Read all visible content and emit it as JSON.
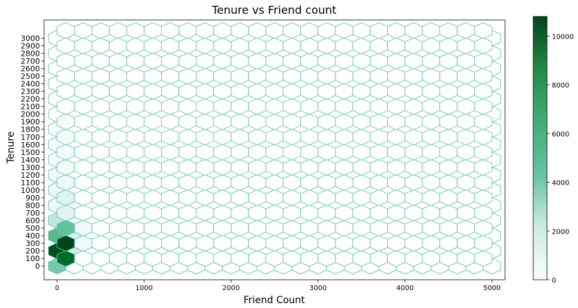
{
  "chart_data": {
    "type": "hexbin",
    "title": "Tenure vs Friend count",
    "xlabel": "Friend Count",
    "ylabel": "Tenure",
    "xlim": [
      -150,
      5150
    ],
    "ylim": [
      -180,
      3240
    ],
    "x_ticks": [
      0,
      1000,
      2000,
      3000,
      4000,
      5000
    ],
    "y_ticks": [
      0,
      100,
      200,
      300,
      400,
      500,
      600,
      700,
      800,
      900,
      1000,
      1100,
      1200,
      1300,
      1400,
      1500,
      1600,
      1700,
      1800,
      1900,
      2000,
      2100,
      2200,
      2300,
      2400,
      2500,
      2600,
      2700,
      2800,
      2900,
      3000
    ],
    "colorbar": {
      "min": 0,
      "max": 10800,
      "ticks": [
        0,
        2000,
        4000,
        6000,
        8000,
        10000
      ],
      "colormap": "BuGn"
    },
    "hex_grid": {
      "x_start": 0,
      "x_step": 200,
      "cols": 26,
      "y_start": 0,
      "y_step": 200,
      "rows": 16,
      "offset_x_start": 100,
      "offset_y_start": 100,
      "offset_cols": 25,
      "offset_rows": 16
    },
    "counts": [
      {
        "x": 0,
        "y": 0,
        "count": 5000
      },
      {
        "x": 0,
        "y": 200,
        "count": 10500
      },
      {
        "x": 100,
        "y": 100,
        "count": 9500
      },
      {
        "x": 100,
        "y": 300,
        "count": 10800
      },
      {
        "x": 200,
        "y": 200,
        "count": 2500
      },
      {
        "x": 0,
        "y": 400,
        "count": 6000
      },
      {
        "x": 100,
        "y": 500,
        "count": 5500
      },
      {
        "x": 200,
        "y": 400,
        "count": 2000
      },
      {
        "x": 300,
        "y": 300,
        "count": 700
      },
      {
        "x": 0,
        "y": 600,
        "count": 3000
      },
      {
        "x": 100,
        "y": 700,
        "count": 1500
      },
      {
        "x": 200,
        "y": 600,
        "count": 900
      },
      {
        "x": 300,
        "y": 500,
        "count": 600
      },
      {
        "x": 100,
        "y": 900,
        "count": 1800
      },
      {
        "x": 0,
        "y": 800,
        "count": 800
      },
      {
        "x": 200,
        "y": 800,
        "count": 500
      },
      {
        "x": 0,
        "y": 1000,
        "count": 700
      },
      {
        "x": 100,
        "y": 1100,
        "count": 600
      },
      {
        "x": 0,
        "y": 1200,
        "count": 500
      },
      {
        "x": 100,
        "y": 1300,
        "count": 400
      },
      {
        "x": 0,
        "y": 1400,
        "count": 400
      },
      {
        "x": 100,
        "y": 1500,
        "count": 350
      },
      {
        "x": 0,
        "y": 1600,
        "count": 300
      },
      {
        "x": 100,
        "y": 1700,
        "count": 250
      },
      {
        "x": 0,
        "y": 1800,
        "count": 200
      },
      {
        "x": 100,
        "y": 1900,
        "count": 150
      }
    ]
  }
}
